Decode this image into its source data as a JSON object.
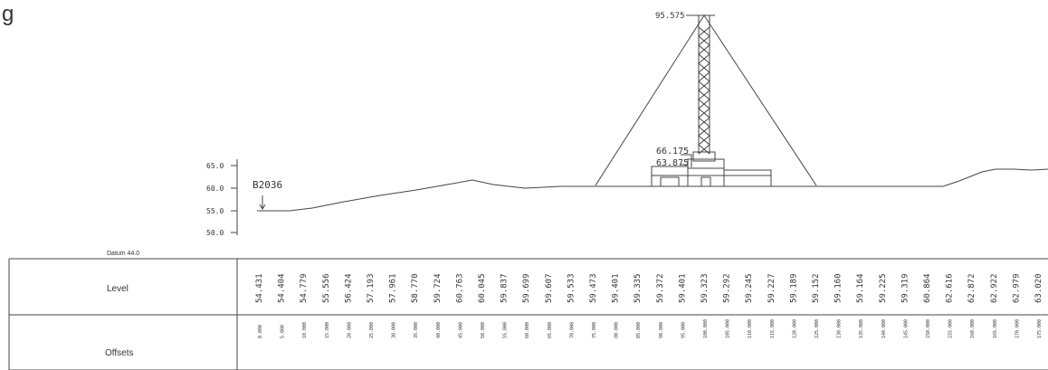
{
  "page": {
    "corner_letter": "g"
  },
  "profile": {
    "top_level": "95.575",
    "mid_level_1": "66.175",
    "mid_level_2": "63.875",
    "borehole": "B2036",
    "datum": "Datum 44.0",
    "y_axis_ticks": [
      "65.0",
      "60.0",
      "55.0",
      "50.0"
    ]
  },
  "table": {
    "level_label": "Level",
    "offsets_label": "Offsets",
    "levels": [
      "54.431",
      "54.404",
      "54.779",
      "55.556",
      "56.424",
      "57.193",
      "57.961",
      "58.770",
      "59.724",
      "60.763",
      "60.045",
      "59.837",
      "59.699",
      "59.607",
      "59.533",
      "59.473",
      "59.401",
      "59.335",
      "59.372",
      "59.401",
      "59.323",
      "59.292",
      "59.245",
      "59.227",
      "59.189",
      "59.152",
      "59.160",
      "59.164",
      "59.225",
      "59.319",
      "60.864",
      "62.616",
      "62.872",
      "62.922",
      "62.979",
      "63.020"
    ],
    "offsets": [
      "0.000",
      "5.000",
      "10.000",
      "15.000",
      "20.000",
      "25.000",
      "30.000",
      "35.000",
      "40.000",
      "45.000",
      "50.000",
      "55.000",
      "60.000",
      "65.000",
      "70.000",
      "75.000",
      "80.000",
      "85.000",
      "90.000",
      "95.000",
      "100.000",
      "105.000",
      "110.000",
      "115.000",
      "120.000",
      "125.000",
      "130.000",
      "135.000",
      "140.000",
      "145.000",
      "150.000",
      "155.000",
      "160.000",
      "165.000",
      "170.000",
      "175.000"
    ]
  }
}
